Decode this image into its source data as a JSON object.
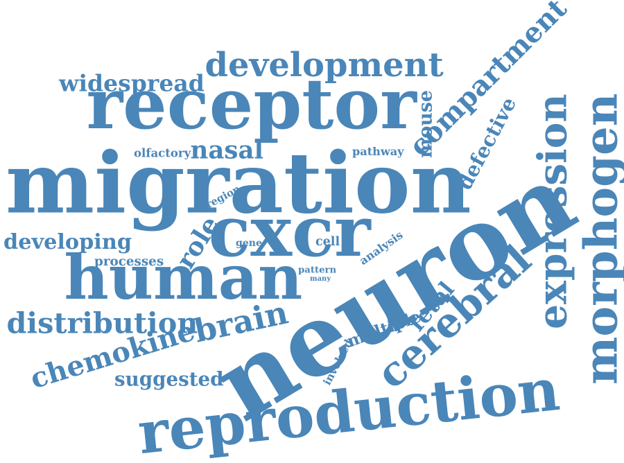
{
  "color": "#4a86b8",
  "words": [
    {
      "id": "migration",
      "text": "migration"
    },
    {
      "id": "neuron",
      "text": "neuron"
    },
    {
      "id": "receptor",
      "text": "receptor"
    },
    {
      "id": "reproduction",
      "text": "reproduction"
    },
    {
      "id": "human",
      "text": "human"
    },
    {
      "id": "cxcr",
      "text": "cxcr"
    },
    {
      "id": "development",
      "text": "development"
    },
    {
      "id": "expression",
      "text": "expression"
    },
    {
      "id": "morphogen",
      "text": "morphogen"
    },
    {
      "id": "compartment",
      "text": "compartment"
    },
    {
      "id": "cerebral",
      "text": "cerebral"
    },
    {
      "id": "distribution",
      "text": "distribution"
    },
    {
      "id": "chemokine",
      "text": "chemokine"
    },
    {
      "id": "brain",
      "text": "brain"
    },
    {
      "id": "developing",
      "text": "developing"
    },
    {
      "id": "widespread",
      "text": "widespread"
    },
    {
      "id": "suggested",
      "text": "suggested"
    },
    {
      "id": "nasal",
      "text": "nasal"
    },
    {
      "id": "role",
      "text": "role"
    },
    {
      "id": "mouse",
      "text": "mouse"
    },
    {
      "id": "fetal",
      "text": "fetal"
    },
    {
      "id": "multiple",
      "text": "multiple"
    },
    {
      "id": "defective",
      "text": "defective"
    },
    {
      "id": "processes",
      "text": "processes"
    },
    {
      "id": "olfactory",
      "text": "olfactory"
    },
    {
      "id": "pathway",
      "text": "pathway"
    },
    {
      "id": "involved",
      "text": "involved"
    },
    {
      "id": "region",
      "text": "region"
    },
    {
      "id": "gene",
      "text": "gene"
    },
    {
      "id": "cell",
      "text": "cell"
    },
    {
      "id": "analysis",
      "text": "analysis"
    },
    {
      "id": "pattern",
      "text": "pattern"
    },
    {
      "id": "many",
      "text": "many"
    }
  ]
}
